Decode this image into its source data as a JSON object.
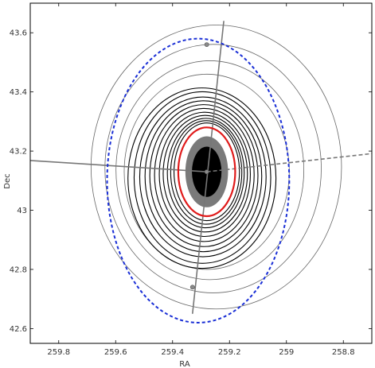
{
  "chart_data": {
    "type": "contour",
    "xlabel": "RA",
    "ylabel": "Dec",
    "x_ticks": [
      "259.8",
      "259.6",
      "259.4",
      "259.2",
      "259",
      "258.8"
    ],
    "y_ticks": [
      "43.6",
      "43.4",
      "43.2",
      "43",
      "42.8",
      "42.6"
    ],
    "xlim": [
      259.9,
      258.7
    ],
    "ylim": [
      42.55,
      43.7
    ],
    "x_inverted": true,
    "grid": false,
    "center": {
      "ra": 259.28,
      "dec": 43.13
    },
    "ellipses": [
      {
        "name": "outer-dashed",
        "ra": 259.31,
        "dec": 43.1,
        "ra_semi": 0.32,
        "dec_semi": 0.48,
        "color": "#1a2fd6",
        "style": "dashed"
      },
      {
        "name": "inner-solid",
        "ra": 259.28,
        "dec": 43.13,
        "ra_semi": 0.1,
        "dec_semi": 0.15,
        "color": "#e01b1b",
        "style": "solid"
      }
    ],
    "filled_core": [
      {
        "ra_semi": 0.075,
        "dec_semi": 0.12,
        "color": "#7a7a7a"
      },
      {
        "ra_semi": 0.052,
        "dec_semi": 0.085,
        "color": "#000000"
      }
    ],
    "contour_levels": [
      {
        "level": 1,
        "ra_semi": 0.115,
        "dec_semi": 0.165
      },
      {
        "level": 2,
        "ra_semi": 0.125,
        "dec_semi": 0.175
      },
      {
        "level": 3,
        "ra_semi": 0.135,
        "dec_semi": 0.185
      },
      {
        "level": 4,
        "ra_semi": 0.148,
        "dec_semi": 0.197
      },
      {
        "level": 5,
        "ra_semi": 0.16,
        "dec_semi": 0.21
      },
      {
        "level": 6,
        "ra_semi": 0.175,
        "dec_semi": 0.225
      },
      {
        "level": 7,
        "ra_semi": 0.19,
        "dec_semi": 0.24
      },
      {
        "level": 8,
        "ra_semi": 0.205,
        "dec_semi": 0.255
      },
      {
        "level": 9,
        "ra_semi": 0.222,
        "dec_semi": 0.27
      },
      {
        "level": 10,
        "ra_semi": 0.24,
        "dec_semi": 0.29
      },
      {
        "level": 11,
        "ra_semi": 0.26,
        "dec_semi": 0.305
      }
    ],
    "outer_contours": [
      {
        "level": 1,
        "ra_semi": 0.29,
        "dec_semi": 0.33
      },
      {
        "level": 2,
        "ra_semi": 0.33,
        "dec_semi": 0.37
      },
      {
        "level": 3,
        "ra_semi": 0.38,
        "dec_semi": 0.42
      },
      {
        "level": 4,
        "ra_semi": 0.44,
        "dec_semi": 0.48
      }
    ],
    "axes_lines": [
      {
        "name": "major-axis",
        "ra": [
          259.33,
          259.22
        ],
        "dec": [
          42.65,
          43.64
        ],
        "color": "#777777",
        "style": "solid"
      },
      {
        "name": "minor-axis-left",
        "ra": [
          259.93,
          259.28
        ],
        "dec": [
          43.17,
          43.13
        ],
        "color": "#777777",
        "style": "solid"
      },
      {
        "name": "minor-axis-right",
        "ra": [
          259.28,
          258.62
        ],
        "dec": [
          43.13,
          43.2
        ],
        "color": "#777777",
        "style": "dashed"
      }
    ],
    "markers": [
      {
        "name": "marker-north",
        "ra": 259.28,
        "dec": 43.56
      },
      {
        "name": "marker-south",
        "ra": 259.33,
        "dec": 42.74
      },
      {
        "name": "marker-center",
        "ra": 259.28,
        "dec": 43.13
      }
    ]
  }
}
